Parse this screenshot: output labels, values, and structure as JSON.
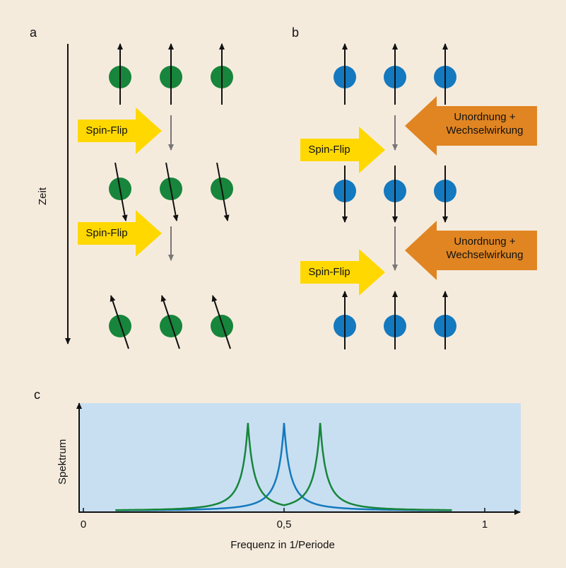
{
  "panels": {
    "a": {
      "label": "a",
      "time_label": "Zeit",
      "spin_flip_label": "Spin-Flip"
    },
    "b": {
      "label": "b",
      "spin_flip_label": "Spin-Flip",
      "disorder_label_line1": "Unordnung +",
      "disorder_label_line2": "Wechselwirkung"
    },
    "c": {
      "label": "c"
    }
  },
  "colors": {
    "background": "#f5ebdd",
    "green_spin": "#17853b",
    "blue_spin": "#1479be",
    "yellow_arrow": "#ffd800",
    "orange_arrow": "#e08522",
    "plot_background": "#c8dff1"
  },
  "chart_data": {
    "type": "line",
    "ylabel": "Spektrum",
    "xlabel": "Frequenz in 1/Periode",
    "x_ticks": [
      "0",
      "0,5",
      "1"
    ],
    "xlim": [
      0,
      1
    ],
    "series": [
      {
        "color": "#1479be",
        "peaks": [
          0.5
        ]
      },
      {
        "color": "#17853b",
        "peaks": [
          0.41,
          0.59
        ]
      }
    ]
  }
}
